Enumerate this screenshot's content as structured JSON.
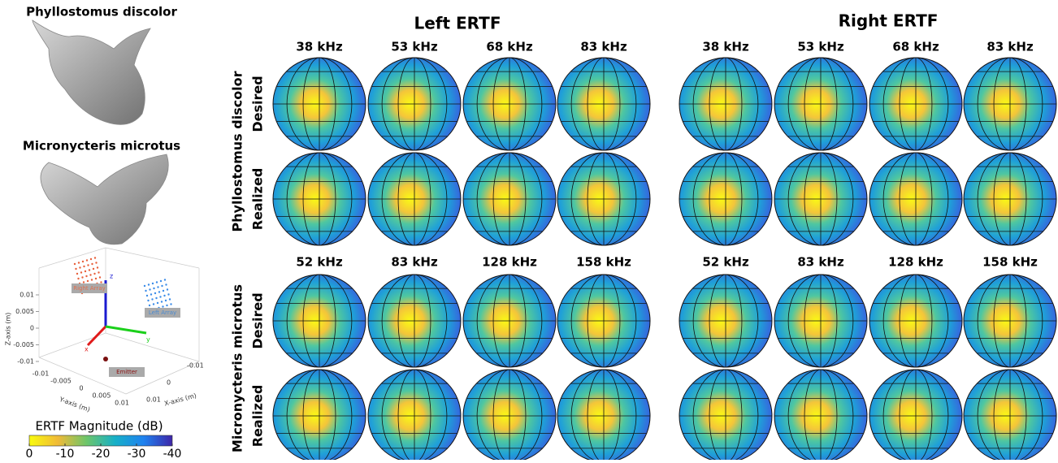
{
  "left_panel": {
    "species_titles": [
      "Phyllostomus discolor",
      "Micronycteris microtus"
    ],
    "plot3d": {
      "z_label": "Z-axis (m)",
      "y_label": "Y-axis (m)",
      "x_label": "X-axis (m)",
      "zticks": [
        0.01,
        0.005,
        0,
        -0.005,
        -0.01
      ],
      "yticks": [
        -0.01,
        -0.005,
        0,
        0.005,
        0.01
      ],
      "xticks": [
        -0.01,
        0,
        0.01
      ],
      "axis_letters": [
        "z",
        "x",
        "y"
      ],
      "tags": [
        "Right Array",
        "Left Array",
        "Emitter"
      ]
    },
    "colorbar": {
      "label": "ERTF Magnitude (dB)",
      "lim": [
        0,
        -40
      ],
      "ticks": [
        0,
        -10,
        -20,
        -30,
        -40
      ]
    }
  },
  "grid": {
    "sides": [
      "Left ERTF",
      "Right ERTF"
    ],
    "groups": [
      {
        "species": "Phyllostomus discolor",
        "frequencies": [
          "38 kHz",
          "53 kHz",
          "68 kHz",
          "83 kHz"
        ],
        "rows": [
          "Desired",
          "Realized"
        ]
      },
      {
        "species": "Micronycteris microtus",
        "frequencies": [
          "52 kHz",
          "83 kHz",
          "128 kHz",
          "158 kHz"
        ],
        "rows": [
          "Desired",
          "Realized"
        ]
      }
    ]
  }
}
